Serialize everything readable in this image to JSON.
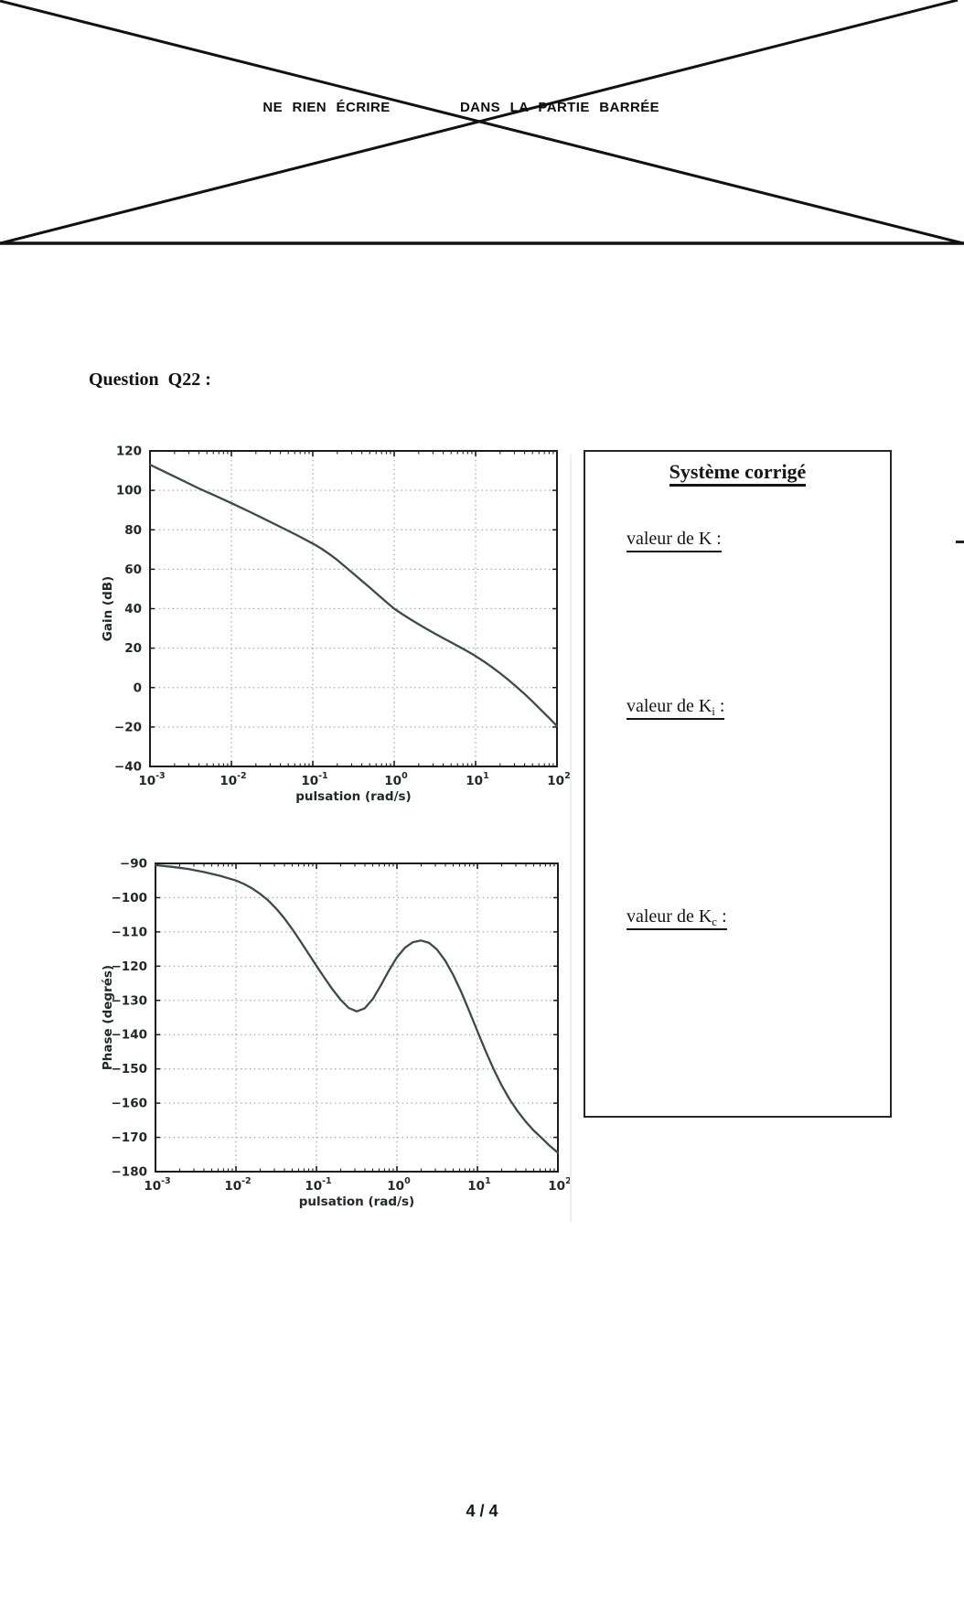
{
  "page": {
    "header": {
      "left_text": "NE RIEN ÉCRIRE",
      "right_text": "DANS LA PARTIE BARRÉE"
    },
    "question_label": "Question  Q22 :",
    "footer": "4 / 4"
  },
  "answer_box": {
    "title": "Système corrigé",
    "fields": [
      {
        "pre": "valeur de K",
        "sub": "",
        "post": " :"
      },
      {
        "pre": "valeur de K",
        "sub": "i",
        "post": " :"
      },
      {
        "pre": "valeur de K",
        "sub": "c",
        "post": " :"
      }
    ]
  },
  "style": {
    "curve_color": "#3c4b49",
    "grid_color": "#a3b1ae",
    "axis_color": "#1c1c1c",
    "tick_text_color": "#20282a"
  },
  "chart_data": [
    {
      "type": "line",
      "title": "",
      "xlabel": "pulsation (rad/s)",
      "ylabel": "Gain (dB)",
      "x_scale": "log",
      "xlim_log10": [
        -3,
        2
      ],
      "ylim": [
        -40,
        120
      ],
      "x_tick_exponents": [
        -3,
        -2,
        -1,
        0,
        1,
        2
      ],
      "y_ticks": [
        120,
        100,
        80,
        60,
        40,
        20,
        0,
        -20,
        -40
      ],
      "grid": true,
      "legend": "none",
      "series": [
        {
          "name": "gain",
          "points": [
            [
              -3,
              113
            ],
            [
              -2.8,
              109
            ],
            [
              -2.6,
              105
            ],
            [
              -2.4,
              101
            ],
            [
              -2.2,
              97.3
            ],
            [
              -2,
              93.5
            ],
            [
              -1.8,
              89.6
            ],
            [
              -1.6,
              85.6
            ],
            [
              -1.4,
              81.5
            ],
            [
              -1.2,
              77.4
            ],
            [
              -1,
              73
            ],
            [
              -0.9,
              70.6
            ],
            [
              -0.8,
              67.8
            ],
            [
              -0.7,
              64.7
            ],
            [
              -0.6,
              61.2
            ],
            [
              -0.5,
              57.7
            ],
            [
              -0.4,
              54.2
            ],
            [
              -0.3,
              50.7
            ],
            [
              -0.2,
              47.1
            ],
            [
              -0.1,
              43.5
            ],
            [
              0,
              40
            ],
            [
              0.1,
              37.2
            ],
            [
              0.2,
              34.6
            ],
            [
              0.3,
              32.1
            ],
            [
              0.4,
              29.7
            ],
            [
              0.5,
              27.4
            ],
            [
              0.6,
              25.1
            ],
            [
              0.7,
              22.9
            ],
            [
              0.8,
              20.7
            ],
            [
              0.9,
              18.4
            ],
            [
              1,
              16
            ],
            [
              1.1,
              13.3
            ],
            [
              1.2,
              10.4
            ],
            [
              1.3,
              7.3
            ],
            [
              1.4,
              4
            ],
            [
              1.5,
              0.5
            ],
            [
              1.6,
              -3.2
            ],
            [
              1.7,
              -7.1
            ],
            [
              1.8,
              -11.2
            ],
            [
              1.9,
              -15.3
            ],
            [
              2,
              -19.5
            ]
          ]
        }
      ]
    },
    {
      "type": "line",
      "title": "",
      "xlabel": "pulsation (rad/s)",
      "ylabel": "Phase (degrés)",
      "x_scale": "log",
      "xlim_log10": [
        -3,
        2
      ],
      "ylim": [
        -180,
        -90
      ],
      "x_tick_exponents": [
        -3,
        -2,
        -1,
        0,
        1,
        2
      ],
      "y_ticks": [
        -90,
        -100,
        -110,
        -120,
        -130,
        -140,
        -150,
        -160,
        -170,
        -180
      ],
      "grid": true,
      "legend": "none",
      "series": [
        {
          "name": "phase",
          "points": [
            [
              -3,
              -90.5
            ],
            [
              -2.8,
              -91
            ],
            [
              -2.6,
              -91.6
            ],
            [
              -2.4,
              -92.5
            ],
            [
              -2.2,
              -93.6
            ],
            [
              -2,
              -95
            ],
            [
              -1.9,
              -96
            ],
            [
              -1.8,
              -97.3
            ],
            [
              -1.7,
              -98.9
            ],
            [
              -1.6,
              -100.8
            ],
            [
              -1.5,
              -103.2
            ],
            [
              -1.4,
              -106
            ],
            [
              -1.3,
              -109.2
            ],
            [
              -1.2,
              -112.7
            ],
            [
              -1.1,
              -116.3
            ],
            [
              -1,
              -119.9
            ],
            [
              -0.9,
              -123.4
            ],
            [
              -0.8,
              -126.8
            ],
            [
              -0.7,
              -129.8
            ],
            [
              -0.6,
              -132.2
            ],
            [
              -0.5,
              -133.2
            ],
            [
              -0.4,
              -132.3
            ],
            [
              -0.3,
              -129.6
            ],
            [
              -0.2,
              -125.6
            ],
            [
              -0.1,
              -121.3
            ],
            [
              0,
              -117.4
            ],
            [
              0.1,
              -114.6
            ],
            [
              0.2,
              -113
            ],
            [
              0.3,
              -112.5
            ],
            [
              0.4,
              -113.2
            ],
            [
              0.5,
              -115.2
            ],
            [
              0.6,
              -118.4
            ],
            [
              0.7,
              -122.6
            ],
            [
              0.8,
              -127.6
            ],
            [
              0.9,
              -133.2
            ],
            [
              1,
              -139
            ],
            [
              1.1,
              -144.7
            ],
            [
              1.2,
              -150
            ],
            [
              1.3,
              -154.8
            ],
            [
              1.4,
              -158.9
            ],
            [
              1.5,
              -162.4
            ],
            [
              1.6,
              -165.4
            ],
            [
              1.7,
              -168
            ],
            [
              1.8,
              -170.2
            ],
            [
              1.9,
              -172.5
            ],
            [
              2,
              -174.5
            ]
          ]
        }
      ]
    }
  ]
}
